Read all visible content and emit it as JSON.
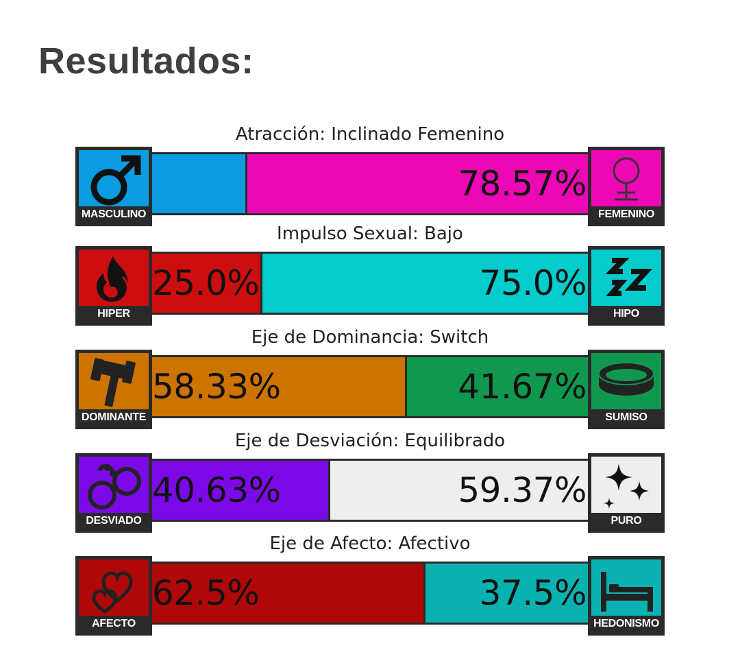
{
  "title": "Resultados:",
  "axes": [
    {
      "label": "Atracción: Inclinado Femenino",
      "left": {
        "caption": "MASCULINO",
        "icon": "male-symbol-icon",
        "color": "#0a9be0",
        "value": 21.43,
        "text": ""
      },
      "right": {
        "caption": "FEMENINO",
        "icon": "female-symbol-icon",
        "color": "#ec08b4",
        "value": 78.57,
        "text": "78.57%"
      }
    },
    {
      "label": "Impulso Sexual: Bajo",
      "left": {
        "caption": "HIPER",
        "icon": "flame-icon",
        "color": "#cc0e0e",
        "value": 25.0,
        "text": "25.0%"
      },
      "right": {
        "caption": "HIPO",
        "icon": "sleep-zzz-icon",
        "color": "#04cccc",
        "value": 75.0,
        "text": "75.0%"
      }
    },
    {
      "label": "Eje de Dominancia: Switch",
      "left": {
        "caption": "DOMINANTE",
        "icon": "gavel-icon",
        "color": "#cc7300",
        "value": 58.33,
        "text": "58.33%"
      },
      "right": {
        "caption": "SUMISO",
        "icon": "collar-icon",
        "color": "#11984f",
        "value": 41.67,
        "text": "41.67%"
      }
    },
    {
      "label": "Eje de Desviación: Equilibrado",
      "left": {
        "caption": "DESVIADO",
        "icon": "handcuffs-icon",
        "color": "#7c0ae8",
        "value": 40.63,
        "text": "40.63%"
      },
      "right": {
        "caption": "PURO",
        "icon": "sparkles-icon",
        "color": "#eeeeee",
        "value": 59.37,
        "text": "59.37%"
      }
    },
    {
      "label": "Eje de Afecto: Afectivo",
      "left": {
        "caption": "AFECTO",
        "icon": "hearts-icon",
        "color": "#b00808",
        "value": 62.5,
        "text": "62.5%"
      },
      "right": {
        "caption": "HEDONISMO",
        "icon": "bed-icon",
        "color": "#09b2b0",
        "value": 37.5,
        "text": "37.5%"
      }
    }
  ]
}
